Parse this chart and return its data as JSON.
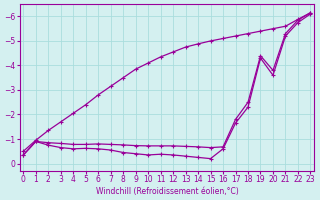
{
  "xlabel": "Windchill (Refroidissement éolien,°C)",
  "line_color": "#990099",
  "bg_color": "#d4f0f0",
  "grid_color": "#aadddd",
  "x": [
    0,
    1,
    2,
    3,
    4,
    5,
    6,
    7,
    8,
    9,
    10,
    11,
    12,
    13,
    14,
    15,
    16,
    17,
    18,
    19,
    20,
    21,
    22,
    23
  ],
  "line1": [
    -0.35,
    -0.9,
    -0.75,
    -0.65,
    -0.6,
    -0.62,
    -0.6,
    -0.55,
    -0.45,
    -0.4,
    -0.35,
    -0.38,
    -0.35,
    -0.3,
    -0.25,
    -0.2,
    -0.6,
    -1.65,
    -2.3,
    -4.3,
    -3.6,
    -5.2,
    -5.75,
    -6.1
  ],
  "line2": [
    -0.35,
    -0.9,
    -0.85,
    -0.82,
    -0.78,
    -0.78,
    -0.8,
    -0.78,
    -0.76,
    -0.73,
    -0.72,
    -0.72,
    -0.72,
    -0.7,
    -0.68,
    -0.65,
    -0.68,
    -1.8,
    -2.5,
    -4.4,
    -3.8,
    -5.3,
    -5.85,
    -6.15
  ],
  "line3": [
    -0.5,
    -0.95,
    -1.35,
    -1.7,
    -2.05,
    -2.4,
    -2.8,
    -3.15,
    -3.5,
    -3.85,
    -4.1,
    -4.35,
    -4.55,
    -4.75,
    -4.88,
    -5.0,
    -5.1,
    -5.2,
    -5.3,
    -5.4,
    -5.5,
    -5.6,
    -5.88,
    -6.15
  ],
  "ylim_top": 0.3,
  "ylim_bottom": -6.5,
  "xlim": [
    0,
    23
  ],
  "yticks": [
    0,
    -1,
    -2,
    -3,
    -4,
    -5,
    -6
  ],
  "xticks": [
    0,
    1,
    2,
    3,
    4,
    5,
    6,
    7,
    8,
    9,
    10,
    11,
    12,
    13,
    14,
    15,
    16,
    17,
    18,
    19,
    20,
    21,
    22,
    23
  ],
  "marker": "+",
  "marker_size": 3.5,
  "line_width": 0.9
}
